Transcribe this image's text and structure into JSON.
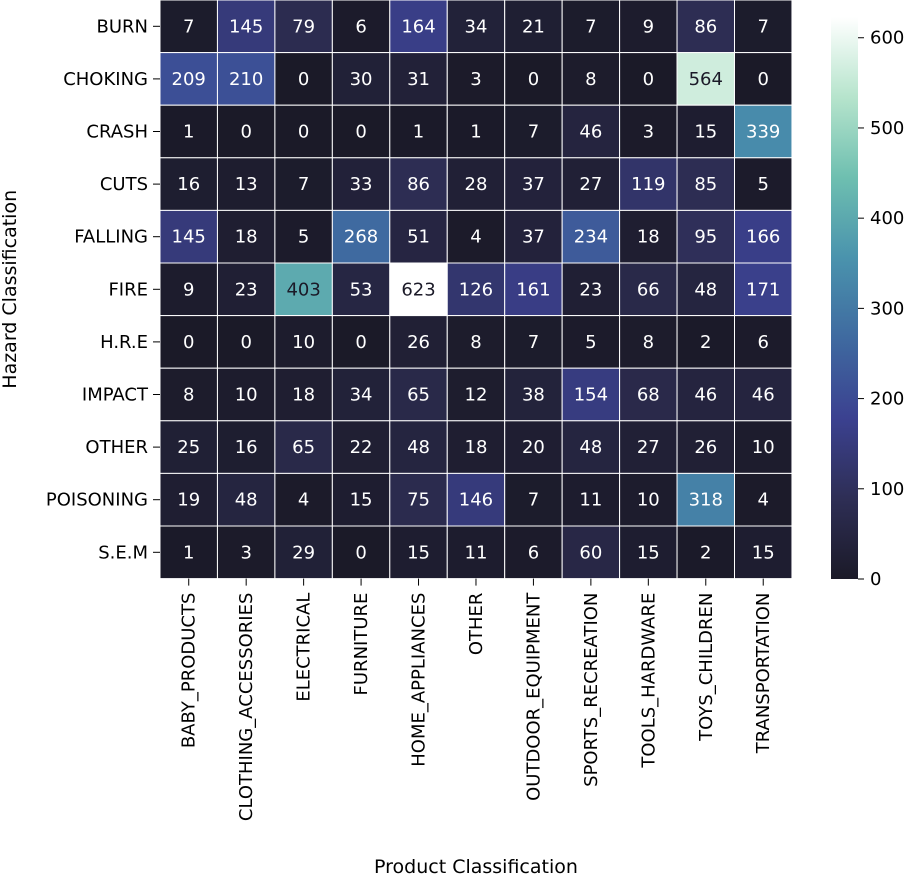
{
  "chart_data": {
    "type": "heatmap",
    "title": "",
    "xlabel": "Product Classification",
    "ylabel": "Hazard Classification",
    "x_categories": [
      "BABY_PRODUCTS",
      "CLOTHING_ACCESSORIES",
      "ELECTRICAL",
      "FURNITURE",
      "HOME_APPLIANCES",
      "OTHER",
      "OUTDOOR_EQUIPMENT",
      "SPORTS_RECREATION",
      "TOOLS_HARDWARE",
      "TOYS_CHILDREN",
      "TRANSPORTATION"
    ],
    "y_categories": [
      "BURN",
      "CHOKING",
      "CRASH",
      "CUTS",
      "FALLING",
      "FIRE",
      "H.R.E",
      "IMPACT",
      "OTHER",
      "POISONING",
      "S.E.M"
    ],
    "values": [
      [
        7,
        145,
        79,
        6,
        164,
        34,
        21,
        7,
        9,
        86,
        7
      ],
      [
        209,
        210,
        0,
        30,
        31,
        3,
        0,
        8,
        0,
        564,
        0
      ],
      [
        1,
        0,
        0,
        0,
        1,
        1,
        7,
        46,
        3,
        15,
        339
      ],
      [
        16,
        13,
        7,
        33,
        86,
        28,
        37,
        27,
        119,
        85,
        5
      ],
      [
        145,
        18,
        5,
        268,
        51,
        4,
        37,
        234,
        18,
        95,
        166
      ],
      [
        9,
        23,
        403,
        53,
        623,
        126,
        161,
        23,
        66,
        48,
        171
      ],
      [
        0,
        0,
        10,
        0,
        26,
        8,
        7,
        5,
        8,
        2,
        6
      ],
      [
        8,
        10,
        18,
        34,
        65,
        12,
        38,
        154,
        68,
        46,
        46
      ],
      [
        25,
        16,
        65,
        22,
        48,
        18,
        20,
        48,
        27,
        26,
        10
      ],
      [
        19,
        48,
        4,
        15,
        75,
        146,
        7,
        11,
        10,
        318,
        4
      ],
      [
        1,
        3,
        29,
        0,
        15,
        11,
        6,
        60,
        15,
        2,
        15
      ]
    ],
    "colorbar": {
      "min": 0,
      "max": 623,
      "ticks": [
        0,
        100,
        200,
        300,
        400,
        500,
        600
      ],
      "colormap": "mako",
      "stops": [
        "#1b1a28",
        "#2e2e55",
        "#3b4190",
        "#3f6aa0",
        "#4a93ad",
        "#6ebfb0",
        "#b6e4cc",
        "#ffffff"
      ]
    },
    "annotations": true,
    "grid": false,
    "cell_border_color": "#ffffff"
  }
}
